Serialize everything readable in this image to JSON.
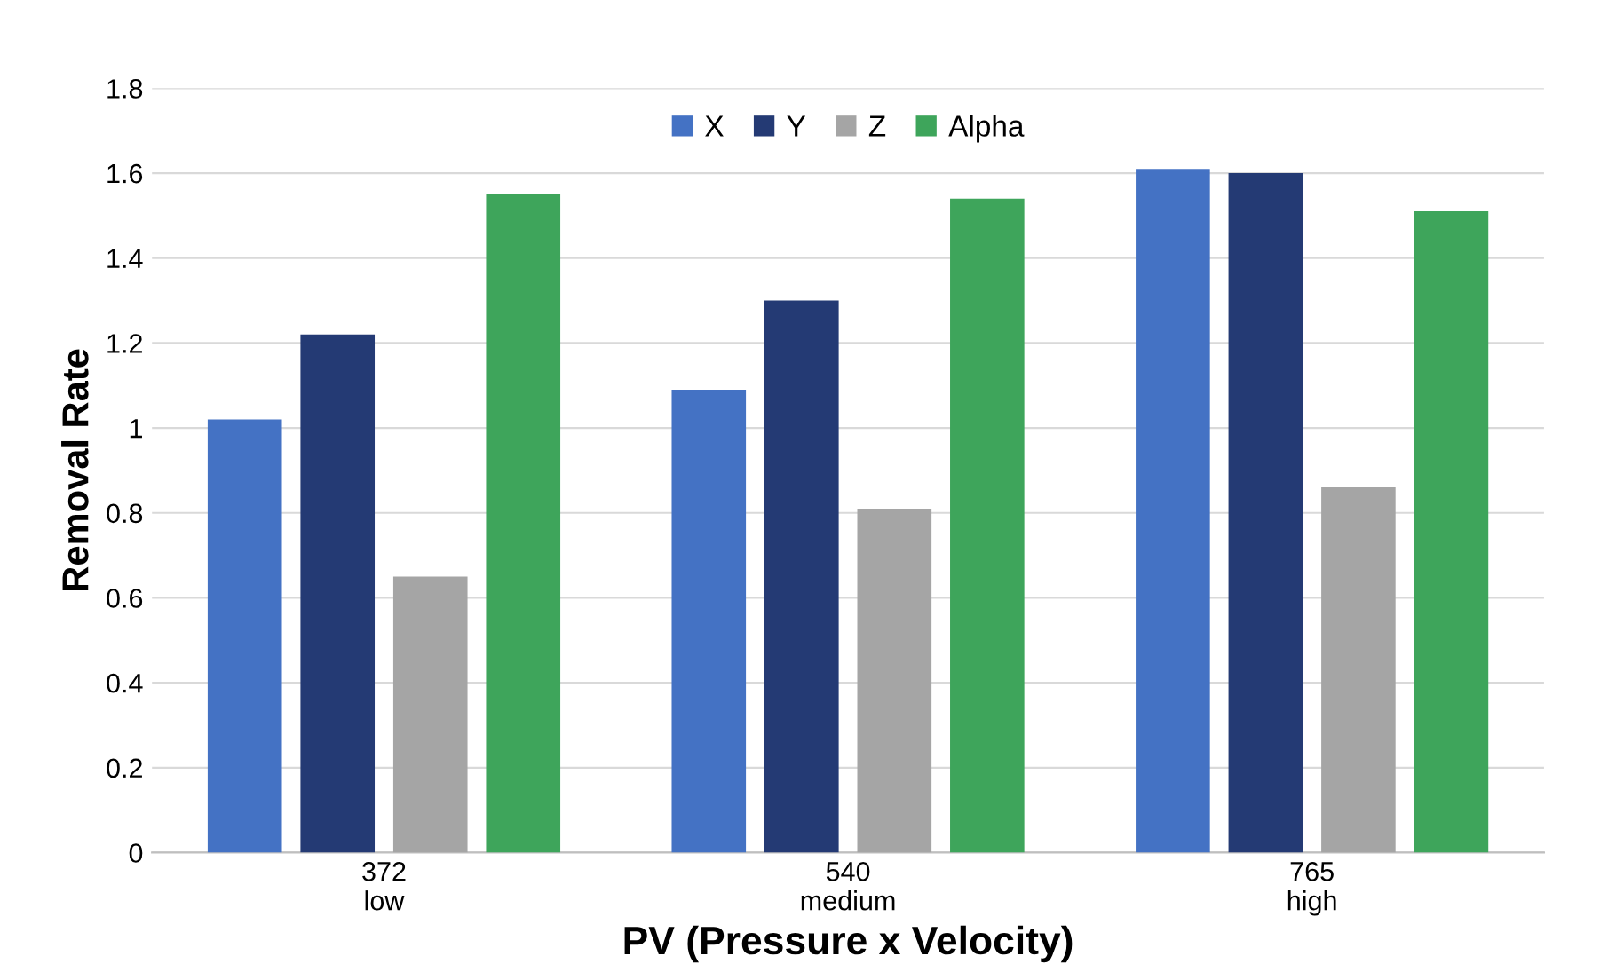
{
  "chart_data": {
    "type": "bar",
    "xlabel": "PV (Pressure x Velocity)",
    "ylabel": "Removal Rate",
    "categories": [
      "372\nlow",
      "540\nmedium",
      "765\nhigh"
    ],
    "series": [
      {
        "name": "X",
        "color": "#4472c4",
        "values": [
          1.02,
          1.09,
          1.61
        ]
      },
      {
        "name": "Y",
        "color": "#243a74",
        "values": [
          1.22,
          1.3,
          1.6
        ]
      },
      {
        "name": "Z",
        "color": "#a5a5a5",
        "values": [
          0.65,
          0.81,
          0.86
        ]
      },
      {
        "name": "Alpha",
        "color": "#3ea55b",
        "values": [
          1.55,
          1.54,
          1.51
        ]
      }
    ],
    "ylim": [
      0,
      1.8
    ],
    "yticks": [
      0,
      {
        "value": 0.2,
        "label": "0.2"
      },
      {
        "value": 0.4,
        "label": "0.4"
      },
      {
        "value": 0.6,
        "label": "0.6"
      },
      {
        "value": 0.8,
        "label": "0.8"
      },
      1,
      {
        "value": 1.2,
        "label": "1.2"
      },
      {
        "value": 1.4,
        "label": "1.4"
      },
      {
        "value": 1.6,
        "label": "1.6"
      },
      {
        "value": 1.8,
        "label": "1.8"
      }
    ],
    "grid": "y",
    "legend": "top"
  }
}
